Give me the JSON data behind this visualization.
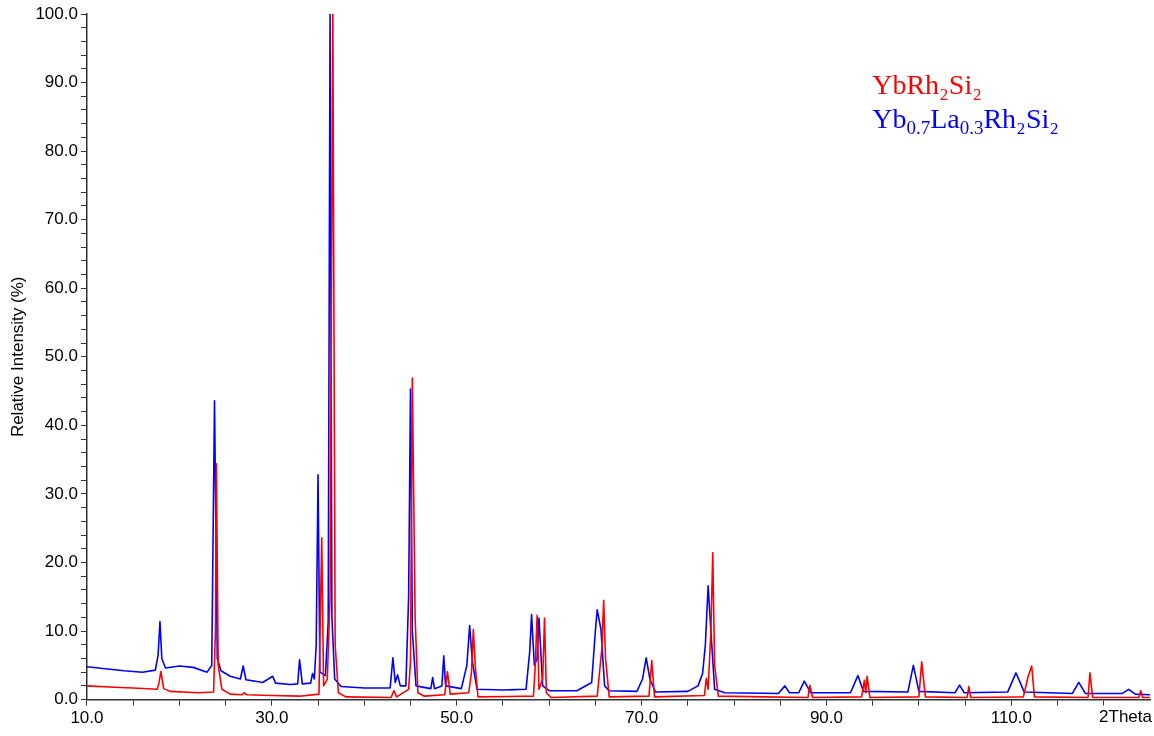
{
  "chart_data": {
    "type": "line",
    "xlabel": "2Theta",
    "ylabel": "Relative Intensity (%)",
    "xlim": [
      10,
      125
    ],
    "ylim": [
      0,
      100
    ],
    "xticks": [
      {
        "value": 10,
        "label": "10.0"
      },
      {
        "value": 15,
        "label": null
      },
      {
        "value": 20,
        "label": null
      },
      {
        "value": 25,
        "label": null
      },
      {
        "value": 30,
        "label": "30.0"
      },
      {
        "value": 35,
        "label": null
      },
      {
        "value": 40,
        "label": null
      },
      {
        "value": 45,
        "label": null
      },
      {
        "value": 50,
        "label": "50.0"
      },
      {
        "value": 55,
        "label": null
      },
      {
        "value": 60,
        "label": null
      },
      {
        "value": 65,
        "label": null
      },
      {
        "value": 70,
        "label": "70.0"
      },
      {
        "value": 75,
        "label": null
      },
      {
        "value": 80,
        "label": null
      },
      {
        "value": 85,
        "label": null
      },
      {
        "value": 90,
        "label": "90.0"
      },
      {
        "value": 95,
        "label": null
      },
      {
        "value": 100,
        "label": null
      },
      {
        "value": 105,
        "label": null
      },
      {
        "value": 110,
        "label": "110.0"
      },
      {
        "value": 115,
        "label": null
      },
      {
        "value": 120,
        "label": null
      }
    ],
    "yticks": [
      {
        "value": 0,
        "label": "0.0"
      },
      {
        "value": 2,
        "label": null
      },
      {
        "value": 4,
        "label": null
      },
      {
        "value": 6,
        "label": null
      },
      {
        "value": 8,
        "label": null
      },
      {
        "value": 10,
        "label": "10.0"
      },
      {
        "value": 12,
        "label": null
      },
      {
        "value": 14,
        "label": null
      },
      {
        "value": 16,
        "label": null
      },
      {
        "value": 18,
        "label": null
      },
      {
        "value": 20,
        "label": "20.0"
      },
      {
        "value": 22,
        "label": null
      },
      {
        "value": 24,
        "label": null
      },
      {
        "value": 26,
        "label": null
      },
      {
        "value": 28,
        "label": null
      },
      {
        "value": 30,
        "label": "30.0"
      },
      {
        "value": 32,
        "label": null
      },
      {
        "value": 34,
        "label": null
      },
      {
        "value": 36,
        "label": null
      },
      {
        "value": 38,
        "label": null
      },
      {
        "value": 40,
        "label": "40.0"
      },
      {
        "value": 42,
        "label": null
      },
      {
        "value": 44,
        "label": null
      },
      {
        "value": 46,
        "label": null
      },
      {
        "value": 48,
        "label": null
      },
      {
        "value": 50,
        "label": "50.0"
      },
      {
        "value": 52,
        "label": null
      },
      {
        "value": 54,
        "label": null
      },
      {
        "value": 56,
        "label": null
      },
      {
        "value": 58,
        "label": null
      },
      {
        "value": 60,
        "label": "60.0"
      },
      {
        "value": 62,
        "label": null
      },
      {
        "value": 64,
        "label": null
      },
      {
        "value": 66,
        "label": null
      },
      {
        "value": 68,
        "label": null
      },
      {
        "value": 70,
        "label": "70.0"
      },
      {
        "value": 72,
        "label": null
      },
      {
        "value": 74,
        "label": null
      },
      {
        "value": 76,
        "label": null
      },
      {
        "value": 78,
        "label": null
      },
      {
        "value": 80,
        "label": "80.0"
      },
      {
        "value": 82,
        "label": null
      },
      {
        "value": 84,
        "label": null
      },
      {
        "value": 86,
        "label": null
      },
      {
        "value": 88,
        "label": null
      },
      {
        "value": 90,
        "label": "90.0"
      },
      {
        "value": 92,
        "label": null
      },
      {
        "value": 94,
        "label": null
      },
      {
        "value": 96,
        "label": null
      },
      {
        "value": 98,
        "label": null
      },
      {
        "value": 100,
        "label": "100.0"
      }
    ],
    "grid": false,
    "legend": "top right",
    "marker": "none",
    "line_style": "solid",
    "series": [
      {
        "name": "YbRh₂Si₂",
        "color": "#ff0000",
        "x": [
          10,
          13,
          15,
          17.6,
          17.8,
          18.0,
          18.3,
          19,
          22,
          23.7,
          23.9,
          24.0,
          24.2,
          24.6,
          25.5,
          26.8,
          27.0,
          27.3,
          30,
          33,
          35.1,
          35.4,
          35.6,
          36.0,
          36.3,
          36.6,
          36.85,
          37.2,
          38,
          42.9,
          43.2,
          43.5,
          44.8,
          45.0,
          45.2,
          45.5,
          45.8,
          46.5,
          48.7,
          49.0,
          49.3,
          51.3,
          51.6,
          51.8,
          52.0,
          52.3,
          58.3,
          58.5,
          58.7,
          58.9,
          59.3,
          59.5,
          59.7,
          60.2,
          65.2,
          65.7,
          65.9,
          66.1,
          66.5,
          70.8,
          71.1,
          71.4,
          76.8,
          77.0,
          77.2,
          77.5,
          77.7,
          77.9,
          78.3,
          88,
          88.2,
          88.5,
          93.8,
          94.1,
          94.25,
          94.4,
          94.7,
          100.0,
          100.3,
          100.7,
          105.2,
          105.4,
          105.6,
          111.3,
          111.8,
          112.2,
          112.5,
          118.3,
          118.5,
          118.8,
          123.8,
          124.0,
          124.2,
          125
        ],
        "values": [
          2.0,
          1.8,
          1.7,
          1.5,
          2.5,
          4.1,
          1.6,
          1.2,
          1.0,
          1.1,
          10,
          34.4,
          5,
          1.5,
          0.8,
          0.7,
          1.0,
          0.7,
          0.6,
          0.5,
          0.8,
          23.6,
          2.0,
          3.0,
          15,
          100,
          8,
          1.0,
          0.4,
          0.3,
          1.3,
          0.4,
          1.5,
          5.5,
          46.9,
          12,
          1.0,
          0.5,
          0.7,
          4.1,
          0.8,
          1.0,
          4,
          10.2,
          5,
          0.4,
          0.5,
          5,
          12.3,
          1.5,
          3,
          11.9,
          1.0,
          0.3,
          0.5,
          7.4,
          14.5,
          6,
          0.4,
          0.5,
          5.7,
          0.4,
          0.6,
          3.1,
          1.5,
          10,
          21.4,
          5,
          0.5,
          0.3,
          2.1,
          0.3,
          0.4,
          2.8,
          1.0,
          3.4,
          0.3,
          0.4,
          5.5,
          0.4,
          0.3,
          1.9,
          0.3,
          0.4,
          3.3,
          4.9,
          0.4,
          0.3,
          3.9,
          0.3,
          0.3,
          1.3,
          0.3,
          0.3
        ]
      },
      {
        "name": "Yb$_{0.7}$La$_{0.3}$Rh₂Si₂",
        "color": "#0000ff",
        "x": [
          10,
          12,
          14,
          16,
          17.4,
          17.7,
          17.9,
          18.1,
          18.5,
          20,
          21.5,
          23,
          23.5,
          23.8,
          24.1,
          24.5,
          25.5,
          26.6,
          26.9,
          27.2,
          29,
          30.1,
          30.4,
          32,
          32.8,
          33.0,
          33.3,
          34.2,
          34.4,
          34.6,
          34.8,
          35.0,
          35.2,
          35.8,
          36.1,
          36.3,
          36.5,
          36.8,
          37.5,
          40,
          42.8,
          43.1,
          43.35,
          43.6,
          43.9,
          44.5,
          44.8,
          45.0,
          45.2,
          45.6,
          47.2,
          47.4,
          47.6,
          48.4,
          48.6,
          48.8,
          50.5,
          51.1,
          51.4,
          51.7,
          52.2,
          55,
          57.5,
          57.9,
          58.1,
          58.4,
          58.7,
          58.9,
          59.3,
          60,
          63,
          64.6,
          65.0,
          65.2,
          65.6,
          66.0,
          66.5,
          69.5,
          70.1,
          70.5,
          70.9,
          71.5,
          75,
          76.1,
          76.6,
          76.9,
          77.2,
          77.5,
          77.9,
          79,
          84.8,
          85.5,
          86.0,
          87.0,
          87.6,
          88.3,
          92.6,
          93.4,
          94.0,
          98.8,
          99.4,
          100.0,
          103.9,
          104.4,
          104.9,
          109.6,
          110.5,
          111.4,
          116.6,
          117.3,
          118,
          122,
          122.7,
          123.4,
          125
        ],
        "values": [
          4.8,
          4.5,
          4.2,
          4.0,
          4.3,
          6.5,
          11.4,
          6.0,
          4.6,
          4.9,
          4.7,
          4.0,
          5.0,
          43.6,
          6.0,
          4.2,
          3.4,
          3.0,
          4.9,
          2.9,
          2.5,
          3.4,
          2.4,
          2.2,
          2.3,
          5.8,
          2.3,
          2.4,
          3.8,
          3.0,
          8.0,
          32.8,
          4.0,
          3.5,
          11.4,
          100,
          12.0,
          3.0,
          1.9,
          1.7,
          1.7,
          6.1,
          2.5,
          3.6,
          2.0,
          2.0,
          15,
          45.3,
          10,
          2.0,
          1.6,
          3.2,
          1.6,
          2.0,
          6.4,
          2.0,
          1.6,
          5.0,
          10.8,
          5.5,
          1.5,
          1.4,
          1.5,
          7,
          12.4,
          5,
          6,
          11.9,
          2,
          1.3,
          1.3,
          2.5,
          10,
          13.1,
          10.3,
          2.0,
          1.3,
          1.2,
          3,
          6.1,
          3.0,
          1.1,
          1.2,
          2.0,
          3.8,
          8,
          16.6,
          10,
          1.5,
          1.0,
          0.9,
          2.0,
          1.0,
          1.0,
          2.7,
          1.0,
          1.0,
          3.5,
          1.2,
          1.1,
          5.0,
          1.2,
          1.0,
          2.1,
          1.0,
          1.1,
          3.9,
          1.1,
          0.9,
          2.5,
          0.9,
          0.9,
          1.5,
          0.8,
          0.7
        ]
      }
    ]
  }
}
